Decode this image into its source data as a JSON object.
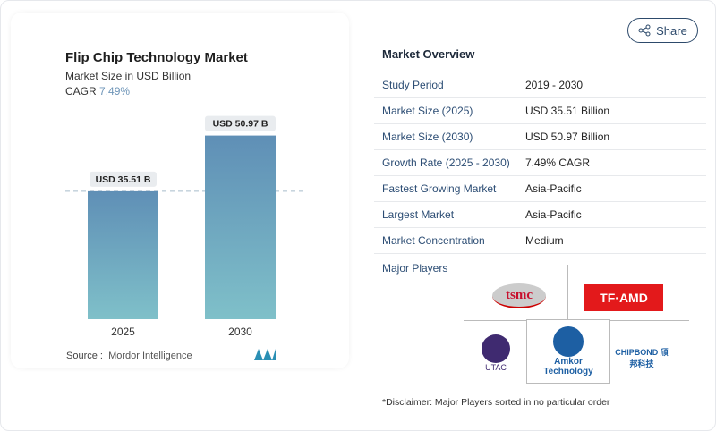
{
  "chart_card": {
    "title": "Flip Chip Technology Market",
    "subtitle": "Market Size in USD Billion",
    "cagr_label": "CAGR",
    "cagr_value": "7.49%",
    "source_label": "Source :",
    "source_value": "Mordor Intelligence"
  },
  "chart_data": {
    "type": "bar",
    "categories": [
      "2025",
      "2030"
    ],
    "values": [
      35.51,
      50.97
    ],
    "data_labels": [
      "USD 35.51 B",
      "USD 50.97 B"
    ],
    "title": "Flip Chip Technology Market",
    "ylabel": "Market Size in USD Billion",
    "reference_line": 35.51,
    "colors": {
      "bar_top": "#5f8fb6",
      "bar_bottom": "#7fc0c9"
    }
  },
  "share": {
    "label": "Share"
  },
  "overview": {
    "title": "Market Overview",
    "rows": [
      {
        "key": "Study Period",
        "value": "2019 - 2030"
      },
      {
        "key": "Market Size (2025)",
        "value": "USD 35.51 Billion"
      },
      {
        "key": "Market Size (2030)",
        "value": "USD 50.97 Billion"
      },
      {
        "key": "Growth Rate (2025 - 2030)",
        "value": "7.49% CAGR"
      },
      {
        "key": "Fastest Growing Market",
        "value": "Asia-Pacific"
      },
      {
        "key": "Largest Market",
        "value": "Asia-Pacific"
      },
      {
        "key": "Market Concentration",
        "value": "Medium"
      }
    ],
    "major_players_label": "Major Players",
    "players": [
      "tsmc",
      "TF·AMD",
      "UTAC",
      "Amkor Technology",
      "CHIPBOND 頎邦科技"
    ],
    "disclaimer": "*Disclaimer: Major Players sorted in no particular order"
  }
}
